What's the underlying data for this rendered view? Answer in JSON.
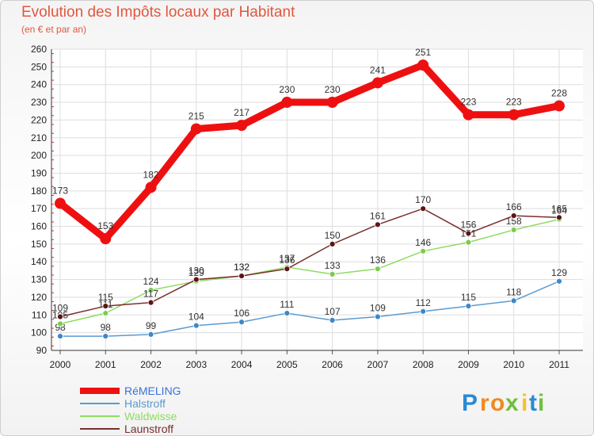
{
  "header": {
    "title": "Evolution des Impôts locaux par Habitant",
    "subtitle": "(en € et par an)"
  },
  "brand": {
    "letters": [
      "P",
      "r",
      "o",
      "x",
      "i",
      "t",
      "i"
    ],
    "colors": [
      "#2a8ad4",
      "#f08a1e",
      "#f08a1e",
      "#6fbf3a",
      "#f5c22a",
      "#2a8ad4",
      "#6fbf3a"
    ]
  },
  "chart_data": {
    "type": "line",
    "title": "Evolution des Impôts locaux par Habitant",
    "subtitle": "(en € et par an)",
    "xlabel": "",
    "ylabel": "",
    "x": [
      "2000",
      "2001",
      "2002",
      "2003",
      "2004",
      "2005",
      "2006",
      "2007",
      "2008",
      "2009",
      "2010",
      "2011"
    ],
    "ylim": [
      90,
      260
    ],
    "yticks": [
      "90",
      "100",
      "110",
      "120",
      "130",
      "140",
      "150",
      "160",
      "170",
      "180",
      "190",
      "200",
      "210",
      "220",
      "230",
      "240",
      "250",
      "260"
    ],
    "grid": true,
    "legend_position": "bottom-left",
    "series": [
      {
        "name": "Halstroff",
        "color": "#5a9bd0",
        "point_color": "#3f87c6",
        "weight": "thin",
        "values": [
          98,
          98,
          99,
          104,
          106,
          111,
          107,
          109,
          112,
          115,
          118,
          129
        ]
      },
      {
        "name": "Waldwisse",
        "color": "#8fdc62",
        "point_color": "#7ccc4c",
        "weight": "thin",
        "values": [
          105,
          111,
          124,
          129,
          132,
          137,
          133,
          136,
          146,
          151,
          158,
          164
        ]
      },
      {
        "name": "Launstroff",
        "color": "#7a2e2e",
        "point_color": "#5c1515",
        "weight": "thin",
        "values": [
          109,
          115,
          117,
          130,
          132,
          136,
          150,
          161,
          170,
          156,
          166,
          165
        ]
      },
      {
        "name": "RéMELING",
        "color": "#ee1010",
        "point_color": "#ee1010",
        "weight": "thick",
        "values": [
          173,
          153,
          182,
          215,
          217,
          230,
          230,
          241,
          251,
          223,
          223,
          228
        ]
      }
    ],
    "legend": [
      "RéMELING",
      "Halstroff",
      "Waldwisse",
      "Launstroff"
    ]
  }
}
